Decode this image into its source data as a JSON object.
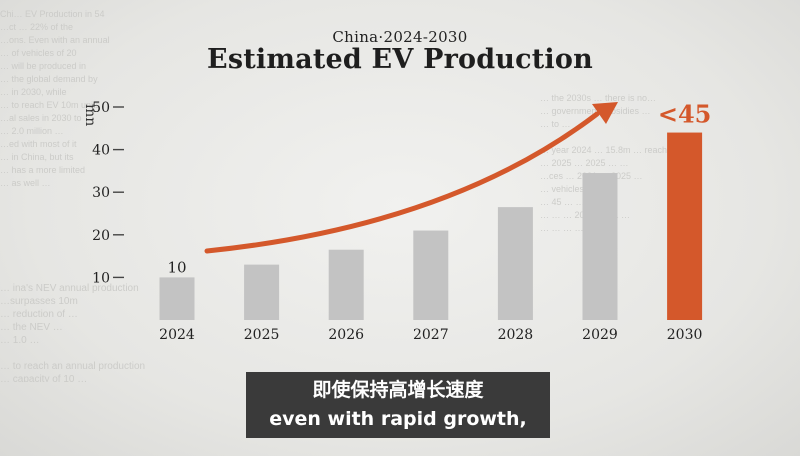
{
  "background_text": {
    "left": "Chi… EV Production in 54\n…ct … 22% of the\n…ons. Even with an annual\n… of vehicles of 20\n… will be produced in\n… the global demand by\n… in 2030, while\n… to reach EV 10m units\n…al sales in 2030 to\n… 2.0 million …\n…ed with most of it\n… in China, but its\n… has a more limited\n… as well …",
    "right": "… the 2030s … there is no…\n… government subsidies …\n… to …\n\n… year 2024 … 15.8m … reach 155\n… 2025 … 2025 … …\n…ces … 2021 … 2025 …\n… vehicles …\n… 45 … …\n… … … 2030 … 71 …\n… … … …",
    "bottom": "… ina's NEV annual production\n…surpasses 10m\n… reduction of …\n… the NEV …\n… 1.0 …\n\n… to reach an annual production\n… capacity of 10 …"
  },
  "header": {
    "subtitle": "China·2024-2030",
    "title": "Estimated EV Production"
  },
  "caption": {
    "zh": "即使保持高增长速度",
    "en": "even with rapid growth,"
  },
  "colors": {
    "bar": "#c3c3c3",
    "highlight": "#d4582b",
    "arrow": "#d4582b",
    "text": "#222222"
  },
  "chart_data": {
    "type": "bar",
    "title": "Estimated EV Production",
    "subtitle": "China·2024-2030",
    "xlabel": "",
    "ylabel": "mn",
    "categories": [
      "2024",
      "2025",
      "2026",
      "2027",
      "2028",
      "2029",
      "2030"
    ],
    "values": [
      10,
      13,
      16.5,
      21,
      26.5,
      34.5,
      44
    ],
    "ylim": [
      0,
      50
    ],
    "yticks": [
      10,
      20,
      30,
      40,
      50
    ],
    "grid": false,
    "highlight_index": 6,
    "data_labels": [
      {
        "index": 0,
        "text": "10"
      },
      {
        "index": 6,
        "text": "<45"
      }
    ],
    "annotations": [
      {
        "type": "arrow",
        "description": "upward growth trend arrow"
      }
    ]
  }
}
